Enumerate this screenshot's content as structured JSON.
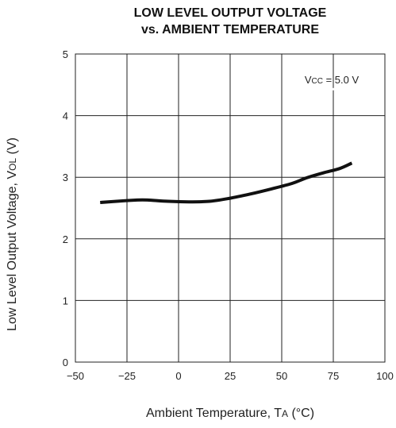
{
  "chart_data": {
    "type": "line",
    "title_line1": "LOW LEVEL OUTPUT VOLTAGE",
    "title_line2": "vs. AMBIENT TEMPERATURE",
    "xlabel": "Ambient Temperature, T",
    "xlabel_sub": "A",
    "xlabel_unit": " (°C)",
    "ylabel": "Low Level Output Voltage, V",
    "ylabel_sub": "OL",
    "ylabel_unit": " (V)",
    "xlim": [
      -50,
      100
    ],
    "ylim": [
      0,
      5
    ],
    "x_ticks": [
      "−50",
      "−25",
      "0",
      "25",
      "50",
      "75",
      "100"
    ],
    "y_ticks": [
      "0",
      "1",
      "2",
      "3",
      "4",
      "5"
    ],
    "grid": true,
    "annotation": {
      "prefix": "V",
      "sub": "CC",
      "text": " = 5.0 V",
      "at": [
        75,
        4.5
      ]
    },
    "series": [
      {
        "color": "#111111",
        "x": [
          -38,
          -30,
          -20,
          -15,
          -5,
          5,
          15,
          25,
          35,
          45,
          55,
          62,
          70,
          78,
          84
        ],
        "y": [
          2.59,
          2.61,
          2.63,
          2.63,
          2.61,
          2.6,
          2.61,
          2.66,
          2.73,
          2.81,
          2.9,
          2.99,
          3.07,
          3.14,
          3.23
        ]
      }
    ]
  }
}
